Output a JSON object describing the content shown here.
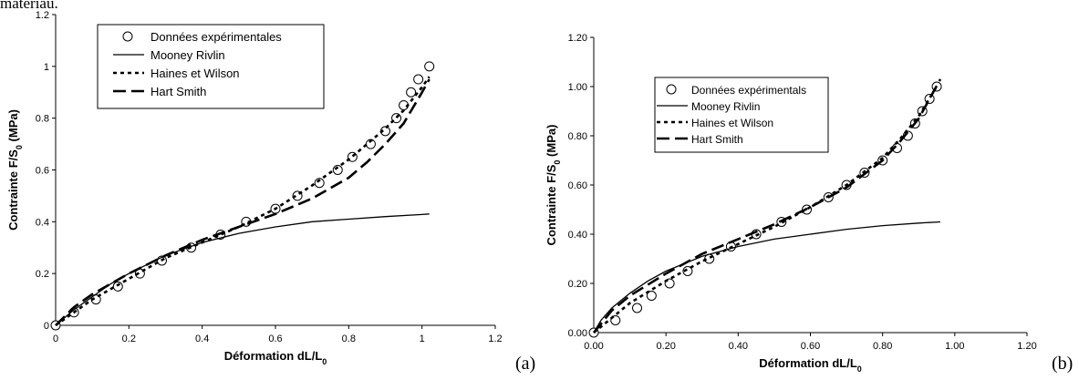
{
  "top_text": "matériau.",
  "chart_data": [
    {
      "type": "line",
      "panel_label": "(a)",
      "xlabel": "Déformation dL/L",
      "xlabel_sub": "0",
      "ylabel": "Contrainte F/S",
      "ylabel_sub": "0",
      "ylabel_unit": " (MPa)",
      "xlim": [
        0,
        1.2
      ],
      "ylim": [
        0,
        1.2
      ],
      "xticks": [
        "0",
        "0.2",
        "0.4",
        "0.6",
        "0.8",
        "1",
        "1.2"
      ],
      "yticks": [
        "0",
        "0.2",
        "0.4",
        "0.6",
        "0.8",
        "1",
        "1.2"
      ],
      "legend_position": "top-left",
      "grid": false,
      "series": [
        {
          "name": "Données expérimentales",
          "style": "markers",
          "x": [
            0,
            0.05,
            0.11,
            0.17,
            0.23,
            0.29,
            0.37,
            0.45,
            0.52,
            0.6,
            0.66,
            0.72,
            0.77,
            0.81,
            0.86,
            0.9,
            0.93,
            0.95,
            0.97,
            0.99,
            1.02
          ],
          "y": [
            0,
            0.05,
            0.1,
            0.15,
            0.2,
            0.25,
            0.3,
            0.35,
            0.4,
            0.45,
            0.5,
            0.55,
            0.6,
            0.65,
            0.7,
            0.75,
            0.8,
            0.85,
            0.9,
            0.95,
            1.0
          ]
        },
        {
          "name": "Mooney Rivlin",
          "style": "solid",
          "x": [
            0,
            0.05,
            0.1,
            0.15,
            0.2,
            0.3,
            0.4,
            0.5,
            0.6,
            0.7,
            0.8,
            0.9,
            1.0,
            1.02
          ],
          "y": [
            0,
            0.06,
            0.11,
            0.16,
            0.2,
            0.27,
            0.32,
            0.355,
            0.38,
            0.4,
            0.41,
            0.42,
            0.428,
            0.43
          ]
        },
        {
          "name": "Haines et Wilson",
          "style": "dotted",
          "x": [
            0,
            0.05,
            0.1,
            0.2,
            0.3,
            0.4,
            0.5,
            0.6,
            0.7,
            0.8,
            0.85,
            0.9,
            0.95,
            1.0,
            1.02
          ],
          "y": [
            0,
            0.05,
            0.1,
            0.18,
            0.26,
            0.32,
            0.38,
            0.45,
            0.54,
            0.64,
            0.7,
            0.76,
            0.83,
            0.92,
            0.96
          ]
        },
        {
          "name": "Hart Smith",
          "style": "dashed",
          "x": [
            0,
            0.05,
            0.1,
            0.2,
            0.3,
            0.4,
            0.5,
            0.6,
            0.7,
            0.8,
            0.85,
            0.9,
            0.95,
            1.0,
            1.02
          ],
          "y": [
            0,
            0.07,
            0.12,
            0.2,
            0.27,
            0.33,
            0.38,
            0.43,
            0.49,
            0.57,
            0.63,
            0.7,
            0.78,
            0.9,
            0.95
          ]
        }
      ]
    },
    {
      "type": "line",
      "panel_label": "(b)",
      "xlabel": "Déformation dL/L",
      "xlabel_sub": "0",
      "ylabel": "Contrainte F/S",
      "ylabel_sub": "0",
      "ylabel_unit": " (MPa)",
      "xlim": [
        0,
        1.2
      ],
      "ylim": [
        0,
        1.2
      ],
      "xticks": [
        "0.00",
        "0.20",
        "0.40",
        "0.60",
        "0.80",
        "1.00",
        "1.20"
      ],
      "yticks": [
        "0.00",
        "0.20",
        "0.40",
        "0.60",
        "0.80",
        "1.00",
        "1.20"
      ],
      "legend_position": "top-left",
      "grid": false,
      "series": [
        {
          "name": "Données expérimentals",
          "style": "markers",
          "x": [
            0,
            0.06,
            0.12,
            0.16,
            0.21,
            0.26,
            0.32,
            0.38,
            0.45,
            0.52,
            0.59,
            0.65,
            0.7,
            0.75,
            0.8,
            0.84,
            0.87,
            0.89,
            0.91,
            0.93,
            0.95
          ],
          "y": [
            0,
            0.05,
            0.1,
            0.15,
            0.2,
            0.25,
            0.3,
            0.35,
            0.4,
            0.45,
            0.5,
            0.55,
            0.6,
            0.65,
            0.7,
            0.75,
            0.8,
            0.85,
            0.9,
            0.95,
            1.0
          ]
        },
        {
          "name": "Mooney Rivlin",
          "style": "solid",
          "x": [
            0,
            0.02,
            0.05,
            0.1,
            0.15,
            0.2,
            0.3,
            0.4,
            0.5,
            0.6,
            0.7,
            0.8,
            0.9,
            0.96
          ],
          "y": [
            0,
            0.05,
            0.1,
            0.16,
            0.21,
            0.25,
            0.31,
            0.35,
            0.38,
            0.4,
            0.42,
            0.435,
            0.445,
            0.45
          ]
        },
        {
          "name": "Haines et Wilson",
          "style": "dotted",
          "x": [
            0,
            0.05,
            0.1,
            0.2,
            0.3,
            0.4,
            0.5,
            0.6,
            0.7,
            0.8,
            0.85,
            0.9,
            0.95
          ],
          "y": [
            0,
            0.06,
            0.12,
            0.21,
            0.29,
            0.36,
            0.43,
            0.51,
            0.6,
            0.71,
            0.79,
            0.88,
            1.0
          ]
        },
        {
          "name": "Hart Smith",
          "style": "dashed",
          "x": [
            0,
            0.05,
            0.1,
            0.2,
            0.3,
            0.4,
            0.5,
            0.6,
            0.7,
            0.8,
            0.85,
            0.9,
            0.96
          ],
          "y": [
            0,
            0.09,
            0.15,
            0.24,
            0.32,
            0.38,
            0.44,
            0.51,
            0.59,
            0.7,
            0.78,
            0.87,
            1.03
          ]
        }
      ]
    }
  ]
}
